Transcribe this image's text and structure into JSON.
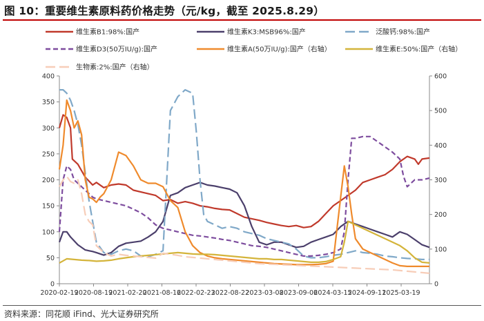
{
  "title": "图 10：重要维生素原料药价格走势（元/kg，截至 2025.8.29）",
  "source": "资料来源：同花顺 iFind、光大证券研究所",
  "chart_data": {
    "type": "line",
    "title": "重要维生素原料药价格走势（元/kg，截至 2025.8.29）",
    "x_range": [
      "2020-02-19",
      "2025-08-29"
    ],
    "x_ticks": [
      "2020-02-19",
      "2020-08-19",
      "2021-02-20",
      "2021-08-16",
      "2022-02-23",
      "2022-08-22",
      "2023-03-08",
      "2023-09-06",
      "2024-03-15",
      "2024-09-11",
      "2025-03-19"
    ],
    "y_left": {
      "lim": [
        0,
        400
      ],
      "ticks": [
        "0",
        "50",
        "100",
        "150",
        "200",
        "250",
        "300",
        "350",
        "400"
      ]
    },
    "y_right": {
      "lim": [
        0,
        600
      ],
      "ticks": [
        "0",
        "100",
        "200",
        "300",
        "400",
        "500",
        "600"
      ]
    },
    "series": [
      {
        "name": "维生素B1:98%:国产",
        "color": "#c0392b",
        "dash": "solid",
        "axis": "left",
        "x": [
          0,
          0.01,
          0.02,
          0.03,
          0.035,
          0.05,
          0.07,
          0.09,
          0.1,
          0.12,
          0.14,
          0.16,
          0.18,
          0.2,
          0.23,
          0.26,
          0.28,
          0.3,
          0.32,
          0.34,
          0.36,
          0.38,
          0.4,
          0.42,
          0.44,
          0.46,
          0.48,
          0.5,
          0.52,
          0.54,
          0.56,
          0.58,
          0.6,
          0.62,
          0.64,
          0.66,
          0.68,
          0.7,
          0.72,
          0.74,
          0.76,
          0.78,
          0.8,
          0.82,
          0.84,
          0.86,
          0.88,
          0.9,
          0.92,
          0.94,
          0.96,
          0.97,
          0.98,
          1.0
        ],
        "y": [
          300,
          325,
          320,
          300,
          240,
          230,
          205,
          190,
          195,
          185,
          190,
          192,
          190,
          180,
          175,
          170,
          160,
          162,
          155,
          158,
          155,
          150,
          148,
          145,
          143,
          142,
          135,
          128,
          125,
          122,
          118,
          115,
          112,
          110,
          112,
          108,
          110,
          120,
          135,
          150,
          160,
          170,
          180,
          195,
          200,
          205,
          210,
          220,
          235,
          245,
          240,
          230,
          240,
          242
        ]
      },
      {
        "name": "维生素K3:MSB96%:国产",
        "color": "#4b3f6b",
        "dash": "solid",
        "axis": "left",
        "x": [
          0,
          0.01,
          0.02,
          0.03,
          0.05,
          0.07,
          0.09,
          0.1,
          0.12,
          0.14,
          0.16,
          0.18,
          0.2,
          0.22,
          0.24,
          0.26,
          0.28,
          0.3,
          0.32,
          0.34,
          0.36,
          0.38,
          0.4,
          0.42,
          0.44,
          0.46,
          0.48,
          0.5,
          0.52,
          0.54,
          0.56,
          0.58,
          0.6,
          0.62,
          0.64,
          0.66,
          0.68,
          0.7,
          0.72,
          0.74,
          0.76,
          0.78,
          0.8,
          0.82,
          0.84,
          0.86,
          0.88,
          0.9,
          0.92,
          0.94,
          0.96,
          0.98,
          1.0
        ],
        "y": [
          80,
          100,
          100,
          90,
          75,
          65,
          62,
          60,
          55,
          60,
          72,
          78,
          80,
          82,
          90,
          100,
          120,
          170,
          175,
          185,
          190,
          195,
          190,
          188,
          185,
          182,
          175,
          150,
          110,
          80,
          75,
          80,
          80,
          75,
          70,
          72,
          80,
          85,
          90,
          95,
          110,
          120,
          115,
          110,
          105,
          100,
          95,
          90,
          100,
          95,
          85,
          75,
          70
        ]
      },
      {
        "name": "泛酸钙:98%:国产",
        "color": "#7fa8c8",
        "dash": "long",
        "axis": "right",
        "x": [
          0,
          0.01,
          0.02,
          0.03,
          0.04,
          0.05,
          0.06,
          0.07,
          0.08,
          0.09,
          0.1,
          0.12,
          0.14,
          0.16,
          0.18,
          0.2,
          0.22,
          0.24,
          0.26,
          0.28,
          0.3,
          0.32,
          0.34,
          0.36,
          0.37,
          0.38,
          0.39,
          0.4,
          0.42,
          0.44,
          0.46,
          0.48,
          0.5,
          0.52,
          0.54,
          0.56,
          0.58,
          0.6,
          0.62,
          0.64,
          0.66,
          0.68,
          0.7,
          0.72,
          0.74,
          0.76,
          0.78,
          0.8,
          0.82,
          0.84,
          0.86,
          0.88,
          0.9,
          0.92,
          0.94,
          0.96,
          0.98,
          1.0
        ],
        "y": [
          560,
          560,
          550,
          530,
          500,
          460,
          400,
          320,
          240,
          180,
          120,
          90,
          85,
          95,
          100,
          95,
          80,
          78,
          85,
          95,
          500,
          540,
          560,
          550,
          440,
          300,
          200,
          180,
          170,
          160,
          165,
          160,
          150,
          145,
          140,
          130,
          125,
          120,
          115,
          100,
          80,
          75,
          75,
          78,
          82,
          85,
          90,
          95,
          90,
          88,
          85,
          80,
          78,
          75,
          73,
          72,
          70,
          70
        ]
      },
      {
        "name": "维生素D3(50万IU/g):国产",
        "color": "#7d4c9e",
        "dash": "dash",
        "axis": "right",
        "x": [
          0,
          0.01,
          0.02,
          0.03,
          0.04,
          0.05,
          0.06,
          0.07,
          0.08,
          0.09,
          0.1,
          0.12,
          0.14,
          0.16,
          0.18,
          0.2,
          0.22,
          0.24,
          0.26,
          0.28,
          0.3,
          0.32,
          0.34,
          0.36,
          0.38,
          0.4,
          0.42,
          0.44,
          0.46,
          0.48,
          0.5,
          0.52,
          0.54,
          0.56,
          0.58,
          0.6,
          0.62,
          0.64,
          0.66,
          0.68,
          0.7,
          0.72,
          0.74,
          0.76,
          0.77,
          0.78,
          0.79,
          0.8,
          0.82,
          0.84,
          0.86,
          0.88,
          0.9,
          0.92,
          0.93,
          0.94,
          0.96,
          0.98,
          1.0
        ],
        "y": [
          150,
          300,
          340,
          330,
          300,
          290,
          280,
          270,
          260,
          250,
          245,
          240,
          235,
          230,
          225,
          215,
          205,
          190,
          170,
          160,
          155,
          150,
          145,
          140,
          138,
          135,
          132,
          128,
          125,
          120,
          115,
          110,
          108,
          105,
          100,
          95,
          90,
          85,
          80,
          80,
          82,
          85,
          90,
          100,
          150,
          300,
          420,
          420,
          425,
          425,
          410,
          395,
          380,
          360,
          310,
          280,
          300,
          300,
          305
        ]
      },
      {
        "name": "维生素A(50万IU/g):国产（右轴）",
        "color": "#ef8a2c",
        "dash": "solid",
        "axis": "right",
        "x": [
          0,
          0.01,
          0.02,
          0.03,
          0.04,
          0.05,
          0.06,
          0.07,
          0.08,
          0.09,
          0.1,
          0.11,
          0.12,
          0.14,
          0.16,
          0.18,
          0.2,
          0.22,
          0.24,
          0.26,
          0.28,
          0.3,
          0.32,
          0.34,
          0.36,
          0.38,
          0.4,
          0.42,
          0.44,
          0.46,
          0.48,
          0.5,
          0.52,
          0.54,
          0.56,
          0.58,
          0.6,
          0.62,
          0.64,
          0.66,
          0.68,
          0.7,
          0.72,
          0.74,
          0.76,
          0.77,
          0.78,
          0.79,
          0.8,
          0.82,
          0.84,
          0.86,
          0.88,
          0.9,
          0.92,
          0.94,
          0.96,
          0.98,
          1.0
        ],
        "y": [
          330,
          400,
          530,
          500,
          450,
          470,
          430,
          300,
          250,
          245,
          235,
          250,
          260,
          300,
          380,
          370,
          340,
          300,
          290,
          290,
          280,
          240,
          220,
          150,
          110,
          90,
          80,
          75,
          72,
          70,
          68,
          66,
          64,
          62,
          60,
          58,
          57,
          56,
          55,
          55,
          55,
          56,
          58,
          65,
          250,
          340,
          280,
          200,
          130,
          100,
          90,
          80,
          70,
          60,
          52,
          50,
          50,
          50,
          50
        ]
      },
      {
        "name": "维生素E:50%:国产（右轴）",
        "color": "#d4b43a",
        "dash": "solid",
        "axis": "right",
        "x": [
          0,
          0.02,
          0.04,
          0.06,
          0.08,
          0.1,
          0.12,
          0.14,
          0.16,
          0.18,
          0.2,
          0.22,
          0.24,
          0.26,
          0.28,
          0.3,
          0.32,
          0.34,
          0.36,
          0.38,
          0.4,
          0.42,
          0.44,
          0.46,
          0.48,
          0.5,
          0.52,
          0.54,
          0.56,
          0.58,
          0.6,
          0.62,
          0.64,
          0.66,
          0.68,
          0.7,
          0.72,
          0.74,
          0.76,
          0.77,
          0.78,
          0.8,
          0.82,
          0.84,
          0.86,
          0.88,
          0.9,
          0.92,
          0.94,
          0.96,
          0.98,
          1.0
        ],
        "y": [
          60,
          72,
          70,
          68,
          67,
          65,
          66,
          68,
          72,
          75,
          78,
          80,
          82,
          84,
          86,
          88,
          90,
          88,
          86,
          85,
          85,
          84,
          82,
          80,
          78,
          76,
          74,
          72,
          72,
          70,
          70,
          68,
          66,
          64,
          62,
          62,
          64,
          70,
          78,
          120,
          180,
          170,
          160,
          150,
          140,
          130,
          120,
          110,
          95,
          75,
          62,
          60
        ]
      },
      {
        "name": "生物素:2%:国产（右轴）",
        "color": "#f7cdb8",
        "dash": "long",
        "axis": "right",
        "x": [
          0,
          0.01,
          0.02,
          0.03,
          0.04,
          0.05,
          0.06,
          0.07,
          0.08,
          0.09,
          0.1,
          0.12,
          0.14,
          0.16,
          0.18,
          0.2,
          0.22,
          0.24,
          0.26,
          0.28,
          0.3,
          0.32,
          0.34,
          0.36,
          0.38,
          0.4,
          0.42,
          0.44,
          0.46,
          0.48,
          0.5,
          0.52,
          0.54,
          0.56,
          0.58,
          0.6,
          0.62,
          0.64,
          0.66,
          0.68,
          0.7,
          0.72,
          0.74,
          0.76,
          0.78,
          0.8,
          0.82,
          0.84,
          0.86,
          0.88,
          0.9,
          0.92,
          0.94,
          0.96,
          0.98,
          1.0
        ],
        "y": [
          280,
          300,
          310,
          295,
          290,
          300,
          260,
          200,
          180,
          170,
          110,
          90,
          80,
          85,
          82,
          80,
          78,
          76,
          74,
          88,
          85,
          82,
          78,
          76,
          74,
          72,
          70,
          68,
          66,
          64,
          62,
          60,
          58,
          57,
          56,
          55,
          54,
          53,
          52,
          51,
          50,
          49,
          48,
          47,
          46,
          45,
          44,
          43,
          42,
          41,
          40,
          38,
          36,
          34,
          32,
          30
        ]
      }
    ],
    "legend": [
      "维生素B1:98%:国产",
      "维生素K3:MSB96%:国产",
      "泛酸钙:98%:国产",
      "维生素D3(50万IU/g):国产",
      "维生素A(50万IU/g):国产（右轴）",
      "维生素E:50%:国产（右轴）",
      "生物素:2%:国产（右轴）"
    ]
  }
}
